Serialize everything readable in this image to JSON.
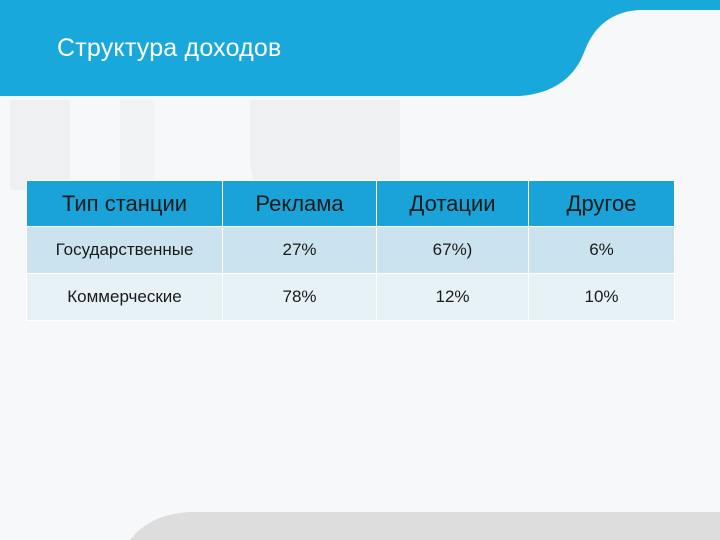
{
  "slide": {
    "title": "Структура доходов"
  },
  "colors": {
    "header_band": "#19a8dc",
    "table_header": "#19a3d8",
    "row_dark": "#cbe3ee",
    "row_light": "#e7f2f7",
    "bottom_band": "#dddddd"
  },
  "table": {
    "columns": [
      "Тип станции",
      "Реклама",
      "Дотации",
      "Другое"
    ],
    "rows": [
      [
        "Государственные",
        "27%",
        "67%)",
        "6%"
      ],
      [
        "Коммерческие",
        "78%",
        "12%",
        "10%"
      ]
    ]
  }
}
